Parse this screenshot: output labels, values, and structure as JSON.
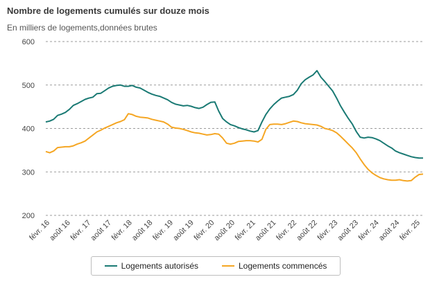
{
  "chart_data": {
    "type": "line",
    "title": "Nombre de logements cumulés sur douze mois",
    "subtitle": "En milliers de logements,données brutes",
    "xlabel": "",
    "ylabel": "",
    "ylim": [
      200,
      600
    ],
    "y_ticks": [
      "600",
      "500",
      "400",
      "300",
      "200"
    ],
    "x_ticks": [
      "févr. 16",
      "août 16",
      "févr. 17",
      "août 17",
      "févr. 18",
      "août 18",
      "févr. 19",
      "août 19",
      "févr. 20",
      "août 20",
      "févr. 21",
      "août 21",
      "févr. 22",
      "août 22",
      "févr. 23",
      "août 23",
      "févr. 24",
      "août 24",
      "févr. 25"
    ],
    "grid": "horizontal dashed",
    "legend_position": "bottom",
    "series": [
      {
        "name": "Logements autorisés",
        "color": "#1a7a74",
        "values": [
          415,
          417,
          421,
          430,
          433,
          437,
          444,
          453,
          457,
          462,
          467,
          470,
          472,
          480,
          481,
          487,
          493,
          497,
          499,
          500,
          497,
          497,
          499,
          495,
          493,
          488,
          483,
          479,
          476,
          474,
          470,
          466,
          460,
          456,
          454,
          452,
          453,
          451,
          448,
          446,
          449,
          455,
          460,
          461,
          440,
          423,
          415,
          409,
          406,
          402,
          399,
          397,
          394,
          392,
          395,
          415,
          432,
          445,
          455,
          463,
          470,
          472,
          474,
          478,
          488,
          503,
          512,
          518,
          523,
          533,
          518,
          508,
          497,
          486,
          470,
          452,
          437,
          423,
          410,
          393,
          380,
          378,
          380,
          379,
          376,
          372,
          366,
          360,
          355,
          348,
          344,
          341,
          338,
          335,
          333,
          332,
          332
        ]
      },
      {
        "name": "Logements commencés",
        "color": "#f5a623",
        "values": [
          347,
          344,
          348,
          356,
          357,
          358,
          358,
          360,
          364,
          367,
          371,
          378,
          385,
          392,
          396,
          401,
          405,
          409,
          413,
          416,
          420,
          434,
          432,
          428,
          426,
          425,
          424,
          421,
          419,
          417,
          415,
          410,
          403,
          401,
          400,
          398,
          395,
          392,
          390,
          389,
          387,
          385,
          386,
          388,
          387,
          378,
          366,
          364,
          366,
          370,
          371,
          372,
          372,
          371,
          369,
          375,
          398,
          409,
          410,
          410,
          409,
          411,
          414,
          417,
          416,
          413,
          411,
          410,
          409,
          408,
          405,
          400,
          398,
          395,
          390,
          382,
          373,
          364,
          355,
          344,
          330,
          317,
          306,
          298,
          292,
          287,
          284,
          282,
          281,
          281,
          282,
          280,
          279,
          280,
          288,
          294,
          295
        ]
      }
    ]
  }
}
